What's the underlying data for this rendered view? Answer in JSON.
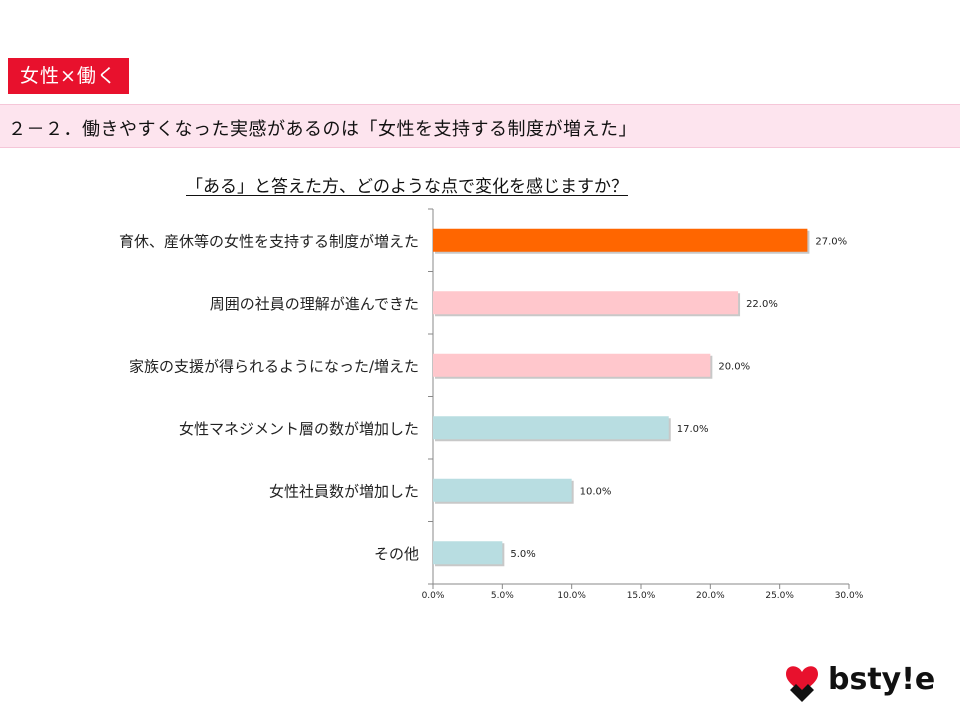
{
  "header": {
    "tag": "女性×働く",
    "subtitle": "２－２．働きやすくなった実感があるのは「女性を支持する制度が増えた」"
  },
  "question": "「ある」と答えた方、どのような点で変化を感じますか？",
  "logo": {
    "text": "bsty!e",
    "icon": "brand-mark-icon",
    "brand_color": "#e8112d"
  },
  "chart_data": {
    "type": "bar",
    "orientation": "horizontal",
    "categories": [
      "育休、産休等の女性を支持する制度が増えた",
      "周囲の社員の理解が進んできた",
      "家族の支援が得られるようになった/増えた",
      "女性マネジメント層の数が増加した",
      "女性社員数が増加した",
      "その他"
    ],
    "values": [
      27.0,
      22.0,
      20.0,
      17.0,
      10.0,
      5.0
    ],
    "value_labels": [
      "27.0%",
      "22.0%",
      "20.0%",
      "17.0%",
      "10.0%",
      "5.0%"
    ],
    "colors": [
      "#ff6600",
      "#ffc7cc",
      "#ffc7cc",
      "#b8dde1",
      "#b8dde1",
      "#b8dde1"
    ],
    "xlim": [
      0,
      30
    ],
    "x_ticks": [
      "0.0%",
      "5.0%",
      "10.0%",
      "15.0%",
      "20.0%",
      "25.0%",
      "30.0%"
    ],
    "grid": false
  }
}
